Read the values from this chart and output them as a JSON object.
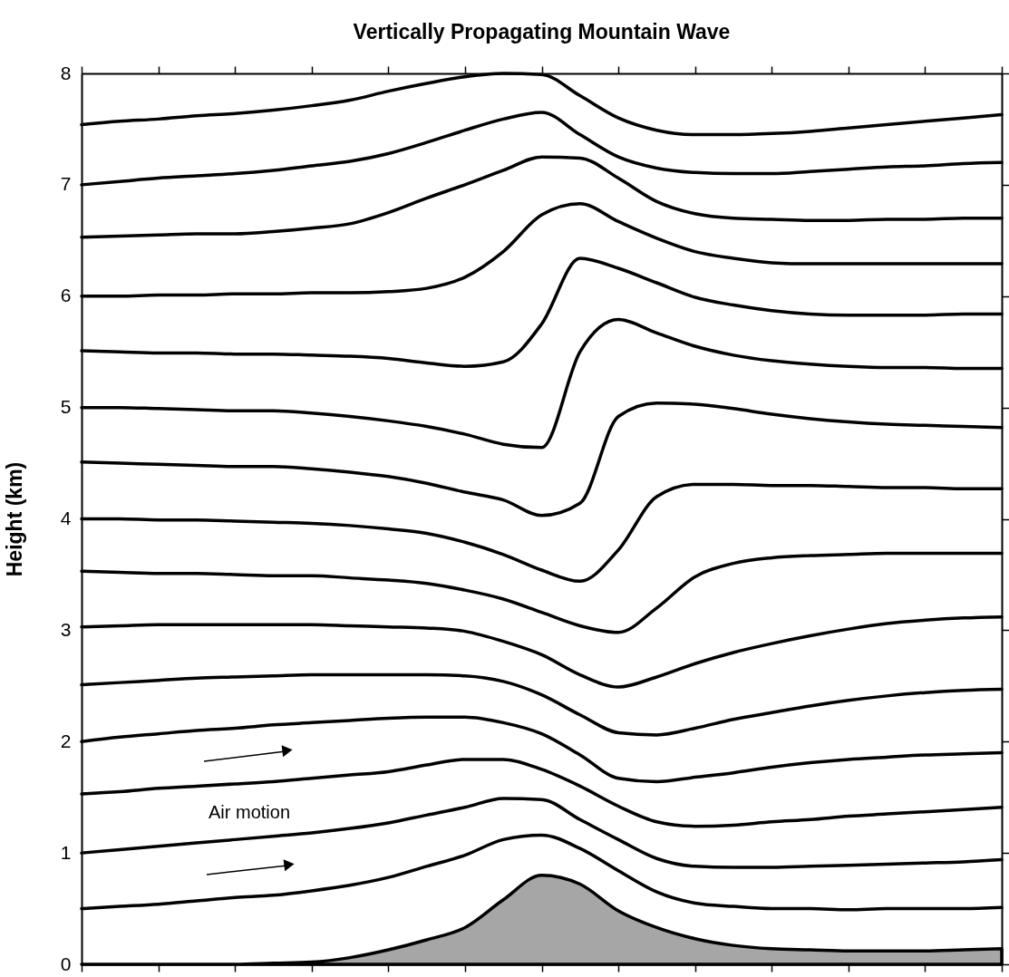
{
  "chart_data": {
    "type": "line",
    "title": "Vertically Propagating Mountain Wave",
    "ylabel": "Height (km)",
    "categories": [
      null,
      null,
      null,
      null,
      null,
      null,
      null,
      null,
      null,
      null,
      null,
      null,
      null,
      null,
      null,
      null,
      null,
      null,
      null,
      null,
      null,
      null,
      null,
      null,
      null
    ],
    "ylim": [
      0,
      8
    ],
    "yticks": [
      0,
      1,
      2,
      3,
      4,
      5,
      6,
      7,
      8
    ],
    "grid": false,
    "tick_labels": "y",
    "line_style": "solid",
    "marker": "none",
    "annotations": [
      "Air motion"
    ],
    "series": [
      {
        "type": "area",
        "color": "#a6a6a6",
        "values": [
          0,
          0,
          0,
          0,
          0,
          0.01,
          0.02,
          0.06,
          0.13,
          0.22,
          0.33,
          0.58,
          0.8,
          0.72,
          0.48,
          0.33,
          0.23,
          0.17,
          0.14,
          0.13,
          0.12,
          0.12,
          0.12,
          0.13,
          0.14
        ]
      },
      {
        "color": "#000000",
        "values": [
          0.5,
          0.52,
          0.54,
          0.57,
          0.6,
          0.62,
          0.66,
          0.71,
          0.78,
          0.88,
          0.98,
          1.12,
          1.16,
          1.04,
          0.84,
          0.65,
          0.55,
          0.52,
          0.5,
          0.5,
          0.49,
          0.5,
          0.5,
          0.5,
          0.51
        ]
      },
      {
        "color": "#000000",
        "values": [
          1.0,
          1.03,
          1.06,
          1.09,
          1.12,
          1.15,
          1.18,
          1.22,
          1.27,
          1.34,
          1.41,
          1.49,
          1.48,
          1.3,
          1.12,
          0.95,
          0.88,
          0.87,
          0.87,
          0.88,
          0.89,
          0.9,
          0.91,
          0.92,
          0.94
        ]
      },
      {
        "color": "#000000",
        "values": [
          1.53,
          1.55,
          1.58,
          1.6,
          1.62,
          1.64,
          1.67,
          1.7,
          1.73,
          1.79,
          1.84,
          1.84,
          1.75,
          1.6,
          1.42,
          1.28,
          1.24,
          1.25,
          1.28,
          1.3,
          1.33,
          1.35,
          1.37,
          1.39,
          1.41
        ]
      },
      {
        "color": "#000000",
        "values": [
          2.0,
          2.04,
          2.07,
          2.1,
          2.12,
          2.15,
          2.17,
          2.19,
          2.21,
          2.22,
          2.22,
          2.17,
          2.07,
          1.88,
          1.67,
          1.64,
          1.68,
          1.72,
          1.77,
          1.81,
          1.84,
          1.86,
          1.88,
          1.89,
          1.9
        ]
      },
      {
        "color": "#000000",
        "values": [
          2.51,
          2.53,
          2.55,
          2.57,
          2.58,
          2.59,
          2.6,
          2.6,
          2.6,
          2.6,
          2.59,
          2.54,
          2.42,
          2.24,
          2.08,
          2.06,
          2.12,
          2.2,
          2.26,
          2.32,
          2.37,
          2.41,
          2.44,
          2.46,
          2.47
        ]
      },
      {
        "color": "#000000",
        "values": [
          3.03,
          3.04,
          3.05,
          3.05,
          3.05,
          3.05,
          3.05,
          3.04,
          3.03,
          3.02,
          2.99,
          2.9,
          2.78,
          2.6,
          2.49,
          2.58,
          2.7,
          2.8,
          2.88,
          2.95,
          3.01,
          3.06,
          3.09,
          3.11,
          3.12
        ]
      },
      {
        "color": "#000000",
        "values": [
          3.53,
          3.52,
          3.51,
          3.51,
          3.5,
          3.49,
          3.49,
          3.47,
          3.45,
          3.42,
          3.36,
          3.28,
          3.16,
          3.04,
          2.98,
          3.2,
          3.48,
          3.6,
          3.65,
          3.67,
          3.68,
          3.69,
          3.69,
          3.69,
          3.69
        ]
      },
      {
        "color": "#000000",
        "values": [
          4.0,
          4.0,
          3.99,
          3.99,
          3.98,
          3.97,
          3.96,
          3.94,
          3.91,
          3.87,
          3.79,
          3.68,
          3.54,
          3.44,
          3.72,
          4.2,
          4.31,
          4.31,
          4.3,
          4.3,
          4.29,
          4.28,
          4.28,
          4.27,
          4.27
        ]
      },
      {
        "color": "#000000",
        "values": [
          4.51,
          4.5,
          4.49,
          4.48,
          4.47,
          4.47,
          4.45,
          4.42,
          4.38,
          4.32,
          4.24,
          4.17,
          4.03,
          4.14,
          4.92,
          5.04,
          5.03,
          4.99,
          4.94,
          4.9,
          4.87,
          4.85,
          4.84,
          4.83,
          4.82
        ]
      },
      {
        "color": "#000000",
        "values": [
          5.0,
          5.0,
          4.99,
          4.98,
          4.97,
          4.97,
          4.95,
          4.92,
          4.88,
          4.83,
          4.76,
          4.67,
          4.64,
          5.5,
          5.79,
          5.67,
          5.55,
          5.47,
          5.42,
          5.39,
          5.37,
          5.36,
          5.36,
          5.35,
          5.35
        ]
      },
      {
        "color": "#000000",
        "values": [
          5.51,
          5.5,
          5.49,
          5.49,
          5.48,
          5.48,
          5.47,
          5.46,
          5.44,
          5.4,
          5.37,
          5.41,
          5.75,
          6.34,
          6.25,
          6.12,
          5.99,
          5.92,
          5.87,
          5.84,
          5.83,
          5.83,
          5.83,
          5.84,
          5.84
        ]
      },
      {
        "color": "#000000",
        "values": [
          6.0,
          6.0,
          6.01,
          6.01,
          6.02,
          6.02,
          6.03,
          6.03,
          6.04,
          6.07,
          6.17,
          6.4,
          6.73,
          6.83,
          6.67,
          6.52,
          6.4,
          6.34,
          6.3,
          6.29,
          6.29,
          6.29,
          6.29,
          6.29,
          6.29
        ]
      },
      {
        "color": "#000000",
        "values": [
          6.53,
          6.54,
          6.55,
          6.56,
          6.56,
          6.58,
          6.61,
          6.65,
          6.75,
          6.88,
          7.0,
          7.13,
          7.25,
          7.24,
          7.06,
          6.85,
          6.74,
          6.7,
          6.69,
          6.68,
          6.68,
          6.69,
          6.69,
          6.7,
          6.7
        ]
      },
      {
        "color": "#000000",
        "values": [
          7.0,
          7.03,
          7.06,
          7.08,
          7.1,
          7.13,
          7.17,
          7.21,
          7.28,
          7.38,
          7.49,
          7.59,
          7.65,
          7.45,
          7.25,
          7.15,
          7.11,
          7.1,
          7.1,
          7.12,
          7.14,
          7.16,
          7.17,
          7.19,
          7.2
        ]
      },
      {
        "color": "#000000",
        "values": [
          7.54,
          7.57,
          7.59,
          7.62,
          7.64,
          7.67,
          7.71,
          7.76,
          7.84,
          7.91,
          7.97,
          8.0,
          7.99,
          7.8,
          7.6,
          7.49,
          7.45,
          7.45,
          7.46,
          7.48,
          7.51,
          7.54,
          7.57,
          7.6,
          7.63
        ]
      }
    ]
  }
}
